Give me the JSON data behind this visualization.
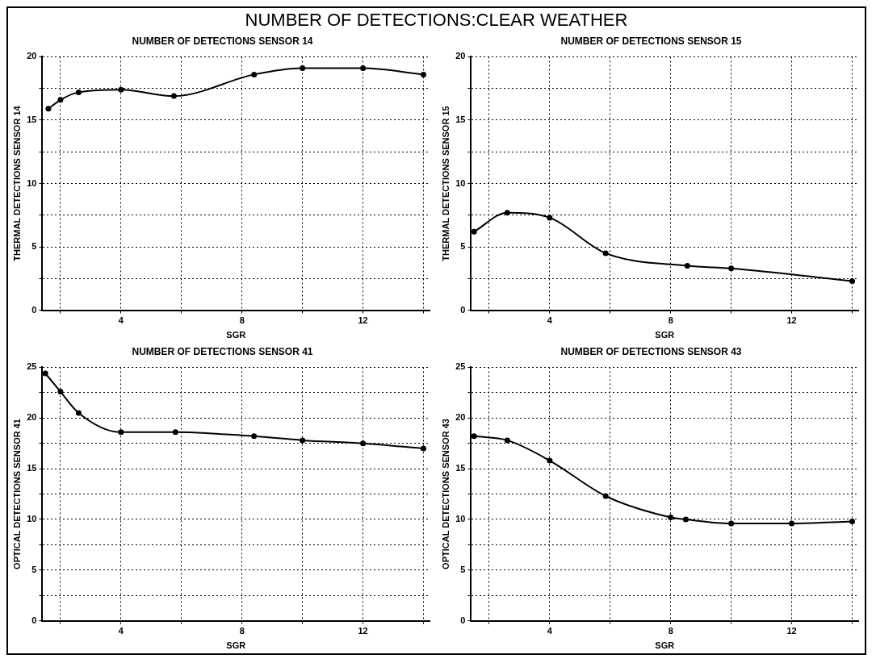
{
  "chart_data": [
    {
      "type": "other",
      "title": "NUMBER OF DETECTIONS:CLEAR WEATHER"
    },
    {
      "type": "line",
      "title": "NUMBER OF DETECTIONS SENSOR 14",
      "xlabel": "SGR",
      "ylabel": "THERMAL DETECTIONS SENSOR 14",
      "x": [
        1.6,
        2,
        2.6,
        4,
        5.75,
        8.4,
        10,
        12,
        14
      ],
      "values": [
        15.9,
        16.6,
        17.2,
        17.4,
        16.9,
        18.6,
        19.1,
        19.1,
        18.6
      ],
      "color": "#000000",
      "marker": "circle",
      "line_style": "solid",
      "grid": true,
      "xlim": [
        1.4,
        14.2
      ],
      "xticks": [
        {
          "value": 2,
          "label": null
        },
        4,
        {
          "value": 6,
          "label": null
        },
        8,
        {
          "value": 10,
          "label": null
        },
        12,
        {
          "value": 14,
          "label": null
        }
      ],
      "ylim": [
        0,
        20
      ],
      "yticks": [
        0,
        {
          "value": 2.5,
          "label": null
        },
        5,
        {
          "value": 7.5,
          "label": null
        },
        10,
        {
          "value": 12.5,
          "label": null
        },
        15,
        {
          "value": 17.5,
          "label": null
        },
        20
      ]
    },
    {
      "type": "line",
      "title": "NUMBER OF DETECTIONS SENSOR 15",
      "xlabel": "SGR",
      "ylabel": "THERMAL DETECTIONS SENSOR 15",
      "x": [
        1.5,
        2.6,
        4,
        5.85,
        8.55,
        10,
        14
      ],
      "values": [
        6.2,
        7.7,
        7.3,
        4.5,
        3.5,
        3.3,
        2.3
      ],
      "color": "#000000",
      "marker": "circle",
      "line_style": "solid",
      "grid": true,
      "xlim": [
        1.4,
        14.2
      ],
      "xticks": [
        {
          "value": 2,
          "label": null
        },
        4,
        {
          "value": 6,
          "label": null
        },
        8,
        {
          "value": 10,
          "label": null
        },
        12,
        {
          "value": 14,
          "label": null
        }
      ],
      "ylim": [
        0,
        20
      ],
      "yticks": [
        0,
        {
          "value": 2.5,
          "label": null
        },
        5,
        {
          "value": 7.5,
          "label": null
        },
        10,
        {
          "value": 12.5,
          "label": null
        },
        15,
        {
          "value": 17.5,
          "label": null
        },
        20
      ]
    },
    {
      "type": "line",
      "title": "NUMBER OF DETECTIONS SENSOR 41",
      "xlabel": "SGR",
      "ylabel": "OPTICAL DETECTIONS SENSOR 41",
      "x": [
        1.5,
        2,
        2.6,
        4,
        5.8,
        8.4,
        10,
        12,
        14
      ],
      "values": [
        24.4,
        22.6,
        20.5,
        18.6,
        18.6,
        18.2,
        17.8,
        17.5,
        17
      ],
      "color": "#000000",
      "marker": "circle",
      "line_style": "solid",
      "grid": true,
      "xlim": [
        1.4,
        14.2
      ],
      "xticks": [
        {
          "value": 2,
          "label": null
        },
        4,
        {
          "value": 6,
          "label": null
        },
        8,
        {
          "value": 10,
          "label": null
        },
        12,
        {
          "value": 14,
          "label": null
        }
      ],
      "ylim": [
        0,
        25
      ],
      "yticks": [
        0,
        {
          "value": 2.5,
          "label": null
        },
        5,
        {
          "value": 7.5,
          "label": null
        },
        10,
        {
          "value": 12.5,
          "label": null
        },
        15,
        {
          "value": 17.5,
          "label": null
        },
        20,
        {
          "value": 22.5,
          "label": null
        },
        25
      ]
    },
    {
      "type": "line",
      "title": "NUMBER OF DETECTIONS SENSOR 43",
      "xlabel": "SGR",
      "ylabel": "OPTICAL DETECTIONS SENSOR 43",
      "x": [
        1.5,
        2.6,
        4,
        5.85,
        8,
        8.5,
        10,
        12,
        14
      ],
      "values": [
        18.2,
        17.8,
        15.8,
        12.3,
        10.2,
        10,
        9.6,
        9.6,
        9.8
      ],
      "color": "#000000",
      "marker": "circle",
      "line_style": "solid",
      "grid": true,
      "xlim": [
        1.4,
        14.2
      ],
      "xticks": [
        {
          "value": 2,
          "label": null
        },
        4,
        {
          "value": 6,
          "label": null
        },
        8,
        {
          "value": 10,
          "label": null
        },
        12,
        {
          "value": 14,
          "label": null
        }
      ],
      "ylim": [
        0,
        25
      ],
      "yticks": [
        0,
        {
          "value": 2.5,
          "label": null
        },
        5,
        {
          "value": 7.5,
          "label": null
        },
        10,
        {
          "value": 12.5,
          "label": null
        },
        15,
        {
          "value": 17.5,
          "label": null
        },
        20,
        {
          "value": 22.5,
          "label": null
        },
        25
      ]
    }
  ]
}
